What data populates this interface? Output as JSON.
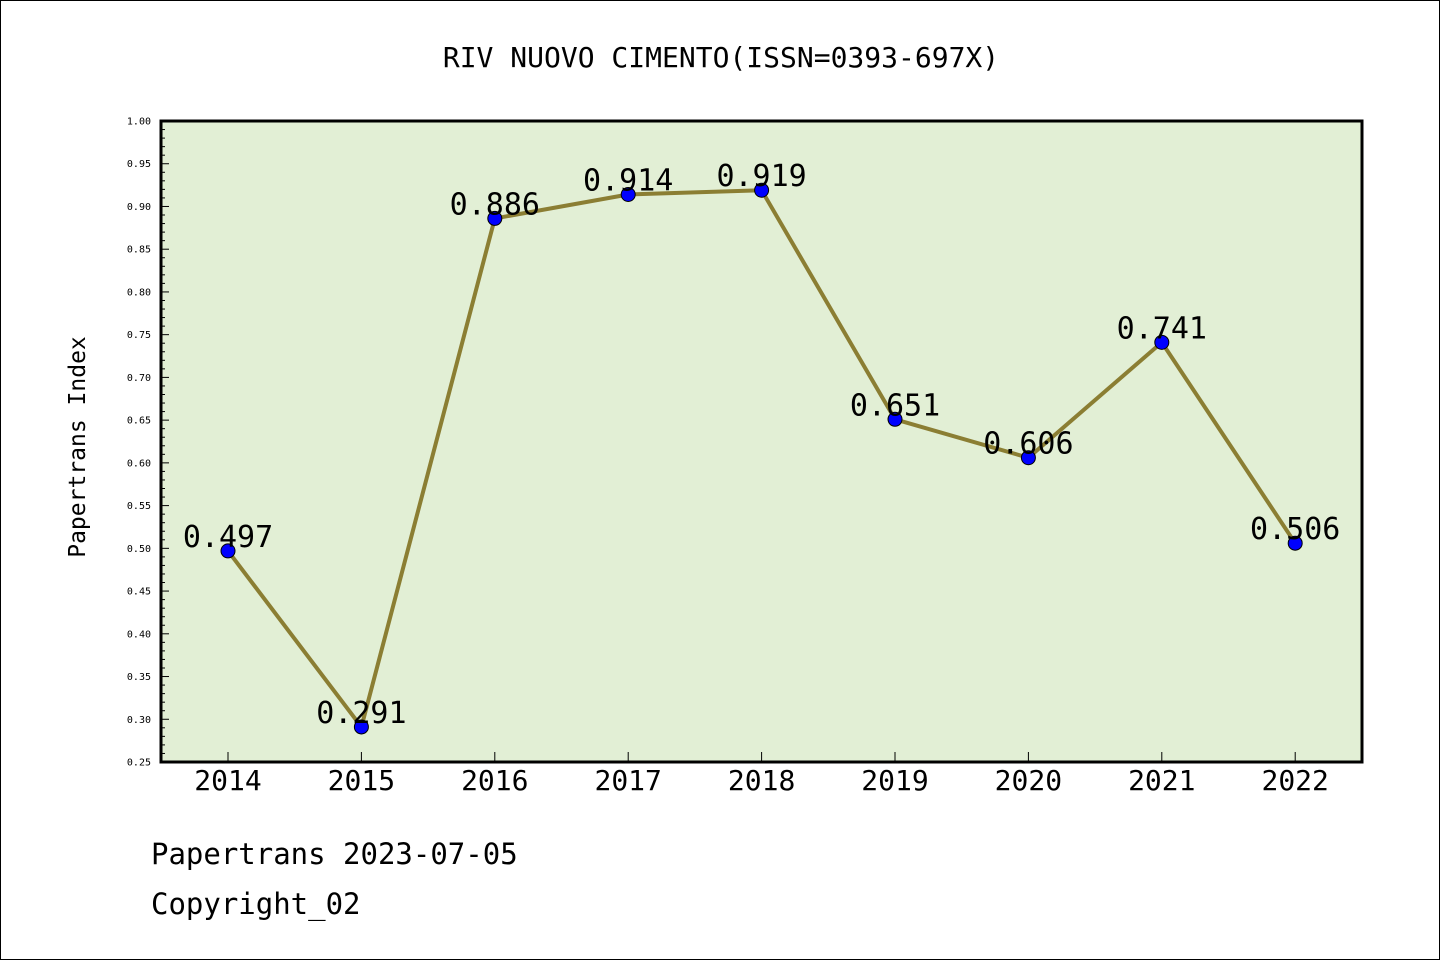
{
  "chart_data": {
    "type": "line",
    "title": "RIV NUOVO CIMENTO(ISSN=0393-697X)",
    "ylabel": "Papertrans Index",
    "xlabel": "",
    "categories": [
      "2014",
      "2015",
      "2016",
      "2017",
      "2018",
      "2019",
      "2020",
      "2021",
      "2022"
    ],
    "values": [
      0.497,
      0.291,
      0.886,
      0.914,
      0.919,
      0.651,
      0.606,
      0.741,
      0.506
    ],
    "data_labels": [
      "0.497",
      "0.291",
      "0.886",
      "0.914",
      "0.919",
      "0.651",
      "0.606",
      "0.741",
      "0.506"
    ],
    "ylim": [
      0.25,
      1.0
    ],
    "yticks": [
      "0.25",
      "0.30",
      "0.35",
      "0.40",
      "0.45",
      "0.50",
      "0.55",
      "0.60",
      "0.65",
      "0.70",
      "0.75",
      "0.80",
      "0.85",
      "0.90",
      "0.95",
      "1.00"
    ],
    "grid": false,
    "legend": "none",
    "colors": {
      "plot_background": "#e2efd5",
      "line": "#8b7e33",
      "marker": "#0000ff"
    }
  },
  "footer": {
    "line1": "Papertrans 2023-07-05",
    "line2": "Copyright_02"
  }
}
